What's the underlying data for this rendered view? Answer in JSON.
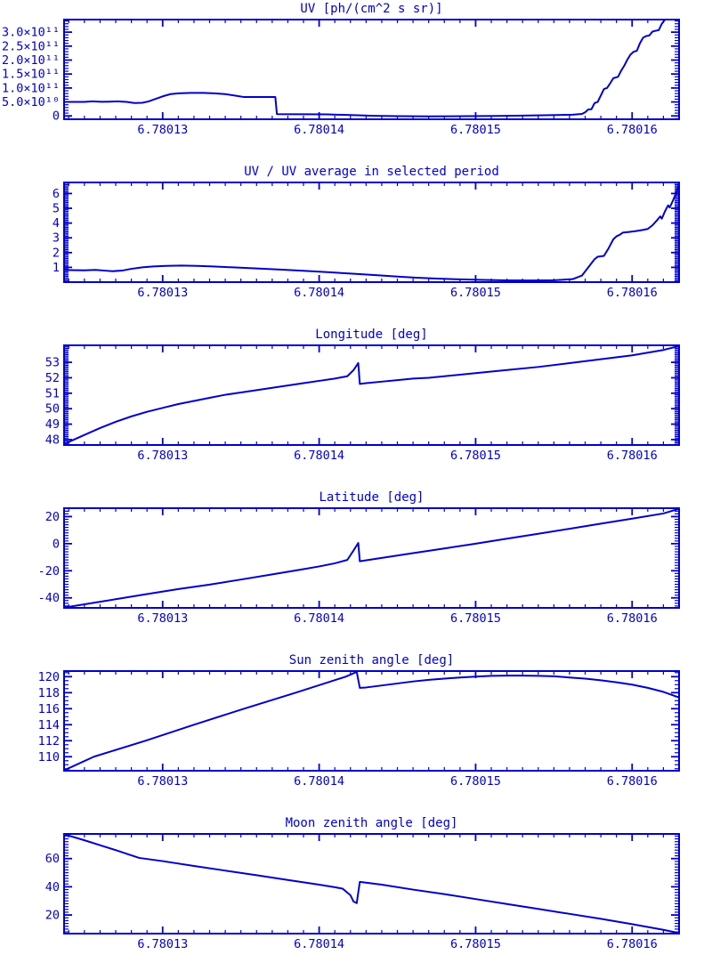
{
  "page": {
    "accent_color": "#0000CC",
    "background_color": "#FFFFFF"
  },
  "chart_data": [
    {
      "type": "line",
      "title": "UV [ph/(cm^2 s sr)]",
      "y_unit": "1e10 ph/(cm^2 s sr)",
      "xlim": [
        6.7801237,
        6.780163
      ],
      "ylim": [
        -1.2,
        34.5
      ],
      "x_minor_step": 1e-06,
      "y_minor_step": 1,
      "xticks": [
        {
          "v": 6.78013,
          "label": "6.78013"
        },
        {
          "v": 6.78014,
          "label": "6.78014"
        },
        {
          "v": 6.78015,
          "label": "6.78015"
        },
        {
          "v": 6.78016,
          "label": "6.78016"
        }
      ],
      "yticks": [
        {
          "v": 0,
          "label": "0"
        },
        {
          "v": 5,
          "label": "5.0×10¹⁰"
        },
        {
          "v": 10,
          "label": "1.0×10¹¹"
        },
        {
          "v": 15,
          "label": "1.5×10¹¹"
        },
        {
          "v": 20,
          "label": "2.0×10¹¹"
        },
        {
          "v": 25,
          "label": "2.5×10¹¹"
        },
        {
          "v": 30,
          "label": "3.0×10¹¹"
        }
      ],
      "points": [
        [
          6.7801237,
          5.0
        ],
        [
          6.780125,
          5.0
        ],
        [
          6.7801255,
          5.2
        ],
        [
          6.7801261,
          5.05
        ],
        [
          6.7801266,
          5.1
        ],
        [
          6.7801271,
          5.2
        ],
        [
          6.7801277,
          5.0
        ],
        [
          6.7801282,
          4.6
        ],
        [
          6.7801287,
          4.7
        ],
        [
          6.7801291,
          5.2
        ],
        [
          6.7801295,
          6.0
        ],
        [
          6.78013,
          7.0
        ],
        [
          6.7801305,
          7.8
        ],
        [
          6.780131,
          8.1
        ],
        [
          6.7801318,
          8.25
        ],
        [
          6.7801326,
          8.25
        ],
        [
          6.7801333,
          8.1
        ],
        [
          6.780134,
          7.8
        ],
        [
          6.7801347,
          7.2
        ],
        [
          6.7801352,
          6.75
        ],
        [
          6.780136,
          6.75
        ],
        [
          6.7801372,
          6.75
        ],
        [
          6.7801373,
          0.65
        ],
        [
          6.780139,
          0.6
        ],
        [
          6.7801405,
          0.55
        ],
        [
          6.780142,
          0.3
        ],
        [
          6.7801435,
          0.05
        ],
        [
          6.780145,
          -0.1
        ],
        [
          6.780147,
          -0.15
        ],
        [
          6.7801495,
          -0.1
        ],
        [
          6.7801515,
          0.0
        ],
        [
          6.7801535,
          0.15
        ],
        [
          6.7801552,
          0.3
        ],
        [
          6.7801562,
          0.45
        ],
        [
          6.7801568,
          0.7
        ],
        [
          6.780157,
          1.3
        ],
        [
          6.7801572,
          2.3
        ],
        [
          6.7801574,
          2.4
        ],
        [
          6.7801576,
          4.6
        ],
        [
          6.7801578,
          5.0
        ],
        [
          6.780158,
          7.3
        ],
        [
          6.7801582,
          9.6
        ],
        [
          6.7801584,
          10.0
        ],
        [
          6.7801586,
          11.7
        ],
        [
          6.7801588,
          13.5
        ],
        [
          6.7801591,
          14.0
        ],
        [
          6.7801593,
          16.2
        ],
        [
          6.7801595,
          18.0
        ],
        [
          6.7801597,
          20.2
        ],
        [
          6.7801599,
          22.0
        ],
        [
          6.7801601,
          23.0
        ],
        [
          6.7801603,
          23.3
        ],
        [
          6.7801605,
          26.0
        ],
        [
          6.7801607,
          28.0
        ],
        [
          6.7801609,
          28.6
        ],
        [
          6.7801611,
          28.8
        ],
        [
          6.7801613,
          30.2
        ],
        [
          6.7801615,
          30.5
        ],
        [
          6.7801617,
          30.7
        ],
        [
          6.7801619,
          33.0
        ],
        [
          6.7801621,
          34.5
        ],
        [
          6.780163,
          34.5
        ]
      ]
    },
    {
      "type": "line",
      "title": "UV / UV average in selected period",
      "y_unit": "ratio",
      "xlim": [
        6.7801237,
        6.780163
      ],
      "ylim": [
        0,
        6.75
      ],
      "x_minor_step": 1e-06,
      "y_minor_step": 0.1,
      "xticks": [
        {
          "v": 6.78013,
          "label": "6.78013"
        },
        {
          "v": 6.78014,
          "label": "6.78014"
        },
        {
          "v": 6.78015,
          "label": "6.78015"
        },
        {
          "v": 6.78016,
          "label": "6.78016"
        }
      ],
      "yticks": [
        {
          "v": 1,
          "label": "1"
        },
        {
          "v": 2,
          "label": "2"
        },
        {
          "v": 3,
          "label": "3"
        },
        {
          "v": 4,
          "label": "4"
        },
        {
          "v": 5,
          "label": "5"
        },
        {
          "v": 6,
          "label": "6"
        }
      ],
      "points": [
        [
          6.7801237,
          0.82
        ],
        [
          6.780125,
          0.8
        ],
        [
          6.7801257,
          0.83
        ],
        [
          6.7801263,
          0.78
        ],
        [
          6.7801268,
          0.74
        ],
        [
          6.7801274,
          0.78
        ],
        [
          6.780128,
          0.9
        ],
        [
          6.7801287,
          1.0
        ],
        [
          6.7801294,
          1.06
        ],
        [
          6.7801302,
          1.1
        ],
        [
          6.7801312,
          1.12
        ],
        [
          6.7801322,
          1.1
        ],
        [
          6.7801332,
          1.06
        ],
        [
          6.7801345,
          1.0
        ],
        [
          6.780136,
          0.93
        ],
        [
          6.7801375,
          0.85
        ],
        [
          6.780139,
          0.77
        ],
        [
          6.7801405,
          0.68
        ],
        [
          6.780142,
          0.58
        ],
        [
          6.7801435,
          0.48
        ],
        [
          6.780145,
          0.38
        ],
        [
          6.7801462,
          0.3
        ],
        [
          6.7801475,
          0.24
        ],
        [
          6.780149,
          0.19
        ],
        [
          6.7801505,
          0.15
        ],
        [
          6.780152,
          0.12
        ],
        [
          6.7801535,
          0.11
        ],
        [
          6.780155,
          0.13
        ],
        [
          6.7801562,
          0.2
        ],
        [
          6.7801568,
          0.45
        ],
        [
          6.7801572,
          1.0
        ],
        [
          6.7801576,
          1.55
        ],
        [
          6.7801578,
          1.72
        ],
        [
          6.7801582,
          1.78
        ],
        [
          6.7801585,
          2.3
        ],
        [
          6.7801588,
          2.9
        ],
        [
          6.780159,
          3.1
        ],
        [
          6.7801592,
          3.2
        ],
        [
          6.7801594,
          3.35
        ],
        [
          6.7801598,
          3.4
        ],
        [
          6.7801602,
          3.45
        ],
        [
          6.7801606,
          3.52
        ],
        [
          6.780161,
          3.6
        ],
        [
          6.7801613,
          3.85
        ],
        [
          6.7801616,
          4.2
        ],
        [
          6.7801618,
          4.45
        ],
        [
          6.7801619,
          4.3
        ],
        [
          6.7801621,
          4.8
        ],
        [
          6.7801623,
          5.2
        ],
        [
          6.7801624,
          5.05
        ],
        [
          6.7801626,
          5.5
        ],
        [
          6.7801628,
          6.0
        ],
        [
          6.7801629,
          6.3
        ],
        [
          6.780163,
          6.7
        ]
      ]
    },
    {
      "type": "line",
      "title": "Longitude [deg]",
      "y_unit": "deg",
      "xlim": [
        6.7801237,
        6.780163
      ],
      "ylim": [
        47.65,
        54.1
      ],
      "x_minor_step": 1e-06,
      "y_minor_step": 0.1,
      "xticks": [
        {
          "v": 6.78013,
          "label": "6.78013"
        },
        {
          "v": 6.78014,
          "label": "6.78014"
        },
        {
          "v": 6.78015,
          "label": "6.78015"
        },
        {
          "v": 6.78016,
          "label": "6.78016"
        }
      ],
      "yticks": [
        {
          "v": 48,
          "label": "48"
        },
        {
          "v": 49,
          "label": "49"
        },
        {
          "v": 50,
          "label": "50"
        },
        {
          "v": 51,
          "label": "51"
        },
        {
          "v": 52,
          "label": "52"
        },
        {
          "v": 53,
          "label": "53"
        }
      ],
      "points": [
        [
          6.7801237,
          47.7
        ],
        [
          6.780124,
          47.85
        ],
        [
          6.780125,
          48.3
        ],
        [
          6.780126,
          48.75
        ],
        [
          6.780127,
          49.15
        ],
        [
          6.780128,
          49.5
        ],
        [
          6.780129,
          49.8
        ],
        [
          6.78013,
          50.05
        ],
        [
          6.780131,
          50.3
        ],
        [
          6.780132,
          50.5
        ],
        [
          6.780133,
          50.7
        ],
        [
          6.780134,
          50.9
        ],
        [
          6.780135,
          51.05
        ],
        [
          6.780136,
          51.2
        ],
        [
          6.780137,
          51.35
        ],
        [
          6.780138,
          51.5
        ],
        [
          6.780139,
          51.65
        ],
        [
          6.78014,
          51.8
        ],
        [
          6.780141,
          51.95
        ],
        [
          6.7801418,
          52.1
        ],
        [
          6.7801422,
          52.5
        ],
        [
          6.7801425,
          52.95
        ],
        [
          6.7801426,
          51.6
        ],
        [
          6.780143,
          51.65
        ],
        [
          6.780144,
          51.75
        ],
        [
          6.780145,
          51.85
        ],
        [
          6.780146,
          51.95
        ],
        [
          6.780147,
          52.0
        ],
        [
          6.780148,
          52.1
        ],
        [
          6.78015,
          52.3
        ],
        [
          6.780152,
          52.5
        ],
        [
          6.780154,
          52.7
        ],
        [
          6.780156,
          52.95
        ],
        [
          6.780158,
          53.2
        ],
        [
          6.78016,
          53.45
        ],
        [
          6.780162,
          53.8
        ],
        [
          6.780163,
          54.05
        ]
      ]
    },
    {
      "type": "line",
      "title": "Latitude [deg]",
      "y_unit": "deg",
      "xlim": [
        6.7801237,
        6.780163
      ],
      "ylim": [
        -47.4,
        26.2
      ],
      "x_minor_step": 1e-06,
      "y_minor_step": 2,
      "xticks": [
        {
          "v": 6.78013,
          "label": "6.78013"
        },
        {
          "v": 6.78014,
          "label": "6.78014"
        },
        {
          "v": 6.78015,
          "label": "6.78015"
        },
        {
          "v": 6.78016,
          "label": "6.78016"
        }
      ],
      "yticks": [
        {
          "v": -40,
          "label": "-40"
        },
        {
          "v": -20,
          "label": "-20"
        },
        {
          "v": 0,
          "label": "0"
        },
        {
          "v": 20,
          "label": "20"
        }
      ],
      "points": [
        [
          6.7801237,
          -47.2
        ],
        [
          6.780125,
          -44.8
        ],
        [
          6.780127,
          -41.0
        ],
        [
          6.780129,
          -37.2
        ],
        [
          6.780131,
          -33.5
        ],
        [
          6.780133,
          -30.2
        ],
        [
          6.780135,
          -26.5
        ],
        [
          6.780137,
          -22.7
        ],
        [
          6.780139,
          -18.8
        ],
        [
          6.78014,
          -16.8
        ],
        [
          6.780141,
          -14.5
        ],
        [
          6.7801418,
          -12.0
        ],
        [
          6.7801422,
          -5.0
        ],
        [
          6.7801425,
          0.5
        ],
        [
          6.7801426,
          -13.0
        ],
        [
          6.780144,
          -10.5
        ],
        [
          6.780146,
          -7.0
        ],
        [
          6.780148,
          -3.5
        ],
        [
          6.78015,
          0.0
        ],
        [
          6.780152,
          3.7
        ],
        [
          6.780154,
          7.3
        ],
        [
          6.780156,
          11.0
        ],
        [
          6.780158,
          14.8
        ],
        [
          6.78016,
          18.5
        ],
        [
          6.780162,
          22.3
        ],
        [
          6.780163,
          25.8
        ]
      ]
    },
    {
      "type": "line",
      "title": "Sun zenith angle [deg]",
      "y_unit": "deg",
      "xlim": [
        6.7801237,
        6.780163
      ],
      "ylim": [
        108.25,
        120.7
      ],
      "x_minor_step": 1e-06,
      "y_minor_step": 0.5,
      "xticks": [
        {
          "v": 6.78013,
          "label": "6.78013"
        },
        {
          "v": 6.78014,
          "label": "6.78014"
        },
        {
          "v": 6.78015,
          "label": "6.78015"
        },
        {
          "v": 6.78016,
          "label": "6.78016"
        }
      ],
      "yticks": [
        {
          "v": 110,
          "label": "110"
        },
        {
          "v": 112,
          "label": "112"
        },
        {
          "v": 114,
          "label": "114"
        },
        {
          "v": 116,
          "label": "116"
        },
        {
          "v": 118,
          "label": "118"
        },
        {
          "v": 120,
          "label": "120"
        }
      ],
      "points": [
        [
          6.7801237,
          108.3
        ],
        [
          6.7801256,
          110.0
        ],
        [
          6.7801289,
          112.0
        ],
        [
          6.780132,
          114.0
        ],
        [
          6.7801352,
          116.0
        ],
        [
          6.7801385,
          118.0
        ],
        [
          6.7801417,
          120.0
        ],
        [
          6.7801424,
          120.6
        ],
        [
          6.7801426,
          118.6
        ],
        [
          6.780143,
          118.65
        ],
        [
          6.780144,
          118.9
        ],
        [
          6.780145,
          119.15
        ],
        [
          6.780146,
          119.4
        ],
        [
          6.780147,
          119.6
        ],
        [
          6.780148,
          119.75
        ],
        [
          6.780149,
          119.9
        ],
        [
          6.78015,
          120.0
        ],
        [
          6.780151,
          120.1
        ],
        [
          6.7801525,
          120.15
        ],
        [
          6.780154,
          120.1
        ],
        [
          6.780155,
          120.05
        ],
        [
          6.780156,
          119.9
        ],
        [
          6.780157,
          119.75
        ],
        [
          6.780158,
          119.55
        ],
        [
          6.780159,
          119.3
        ],
        [
          6.78016,
          119.0
        ],
        [
          6.780161,
          118.6
        ],
        [
          6.780162,
          118.1
        ],
        [
          6.780163,
          117.4
        ]
      ]
    },
    {
      "type": "line",
      "title": "Moon zenith angle [deg]",
      "y_unit": "deg",
      "xlim": [
        6.7801237,
        6.780163
      ],
      "ylim": [
        6.8,
        77.5
      ],
      "x_minor_step": 1e-06,
      "y_minor_step": 2,
      "xticks": [
        {
          "v": 6.78013,
          "label": "6.78013"
        },
        {
          "v": 6.78014,
          "label": "6.78014"
        },
        {
          "v": 6.78015,
          "label": "6.78015"
        },
        {
          "v": 6.78016,
          "label": "6.78016"
        }
      ],
      "yticks": [
        {
          "v": 20,
          "label": "20"
        },
        {
          "v": 40,
          "label": "40"
        },
        {
          "v": 60,
          "label": "60"
        }
      ],
      "points": [
        [
          6.7801237,
          77.3
        ],
        [
          6.780125,
          73.0
        ],
        [
          6.780126,
          69.5
        ],
        [
          6.780127,
          66.0
        ],
        [
          6.780128,
          62.3
        ],
        [
          6.7801285,
          60.5
        ],
        [
          6.78013,
          58.2
        ],
        [
          6.780132,
          54.8
        ],
        [
          6.780134,
          51.5
        ],
        [
          6.780136,
          48.2
        ],
        [
          6.780138,
          44.8
        ],
        [
          6.78014,
          41.5
        ],
        [
          6.780141,
          39.7
        ],
        [
          6.7801415,
          38.7
        ],
        [
          6.780142,
          34.0
        ],
        [
          6.7801422,
          29.5
        ],
        [
          6.7801424,
          28.4
        ],
        [
          6.7801426,
          43.5
        ],
        [
          6.780144,
          41.5
        ],
        [
          6.780146,
          38.0
        ],
        [
          6.780148,
          34.8
        ],
        [
          6.78015,
          31.3
        ],
        [
          6.780152,
          27.8
        ],
        [
          6.780154,
          24.3
        ],
        [
          6.780156,
          20.8
        ],
        [
          6.780158,
          17.3
        ],
        [
          6.78016,
          13.5
        ],
        [
          6.780162,
          9.5
        ],
        [
          6.780163,
          7.2
        ]
      ]
    }
  ]
}
